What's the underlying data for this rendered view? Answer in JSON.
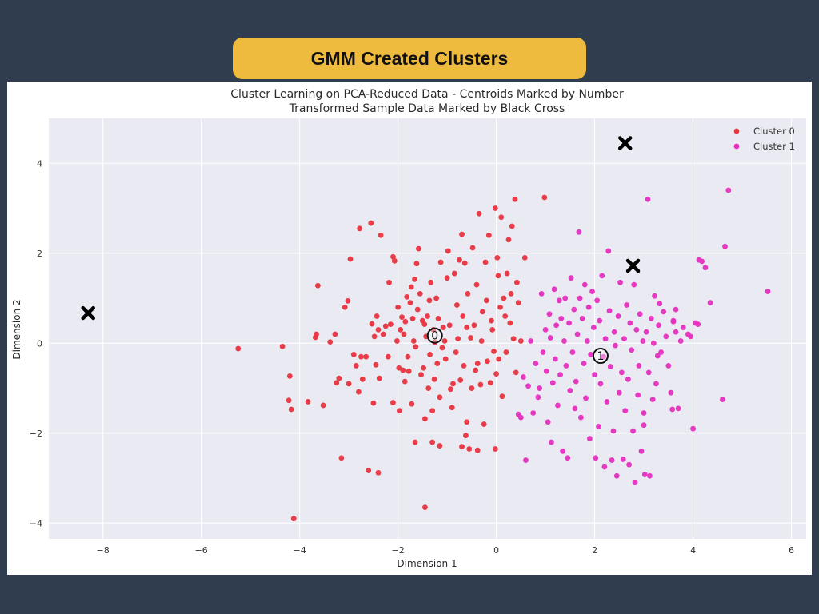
{
  "slide": {
    "header": "GMM Created Clusters",
    "background_color": "#2f3d4e",
    "header_color": "#efbb3e"
  },
  "chart_data": {
    "type": "scatter",
    "title": "Cluster Learning on PCA-Reduced Data - Centroids Marked by Number",
    "subtitle": "Transformed Sample Data Marked by Black Cross",
    "xlabel": "Dimension 1",
    "ylabel": "Dimension 2",
    "xlim": [
      -9.1,
      6.3
    ],
    "ylim": [
      -4.35,
      5.0
    ],
    "xticks": [
      -8,
      -6,
      -4,
      -2,
      0,
      2,
      4,
      6
    ],
    "yticks": [
      -4,
      -2,
      0,
      2,
      4
    ],
    "grid": true,
    "legend_position": "top-right",
    "series": [
      {
        "name": "Cluster 0",
        "color": "#e8343f",
        "points": [
          [
            -5.25,
            -0.12
          ],
          [
            -4.35,
            -0.07
          ],
          [
            -4.2,
            -0.73
          ],
          [
            -4.22,
            -1.27
          ],
          [
            -4.17,
            -1.47
          ],
          [
            -4.12,
            -3.9
          ],
          [
            -3.83,
            -1.3
          ],
          [
            -3.68,
            0.13
          ],
          [
            -3.66,
            0.2
          ],
          [
            -3.63,
            1.28
          ],
          [
            -3.52,
            -1.38
          ],
          [
            -3.38,
            0.03
          ],
          [
            -3.28,
            0.2
          ],
          [
            -3.25,
            -0.88
          ],
          [
            -3.2,
            -0.78
          ],
          [
            -3.15,
            -2.55
          ],
          [
            -3.08,
            0.8
          ],
          [
            -3.02,
            0.94
          ],
          [
            -3.0,
            -0.9
          ],
          [
            -2.97,
            1.87
          ],
          [
            -2.9,
            -0.25
          ],
          [
            -2.85,
            -0.5
          ],
          [
            -2.8,
            -1.08
          ],
          [
            -2.78,
            2.55
          ],
          [
            -2.75,
            -0.3
          ],
          [
            -2.72,
            -0.8
          ],
          [
            -2.65,
            -0.3
          ],
          [
            -2.6,
            -2.83
          ],
          [
            -2.55,
            2.67
          ],
          [
            -2.53,
            0.43
          ],
          [
            -2.5,
            -1.33
          ],
          [
            -2.48,
            0.15
          ],
          [
            -2.45,
            -0.48
          ],
          [
            -2.43,
            0.6
          ],
          [
            -2.4,
            0.3
          ],
          [
            -2.38,
            -0.78
          ],
          [
            -2.4,
            -2.88
          ],
          [
            -2.35,
            2.4
          ],
          [
            -2.3,
            0.2
          ],
          [
            -2.25,
            0.38
          ],
          [
            -2.2,
            -0.3
          ],
          [
            -2.18,
            1.35
          ],
          [
            -2.15,
            0.42
          ],
          [
            -2.1,
            -1.32
          ],
          [
            -2.1,
            1.92
          ],
          [
            -2.07,
            1.83
          ],
          [
            -2.02,
            0.05
          ],
          [
            -2.0,
            0.8
          ],
          [
            -1.98,
            -0.55
          ],
          [
            -1.97,
            -1.5
          ],
          [
            -1.95,
            0.3
          ],
          [
            -1.92,
            0.58
          ],
          [
            -1.9,
            -0.6
          ],
          [
            -1.88,
            0.2
          ],
          [
            -1.86,
            -0.85
          ],
          [
            -1.85,
            0.48
          ],
          [
            -1.82,
            1.03
          ],
          [
            -1.8,
            -0.3
          ],
          [
            -1.78,
            -0.62
          ],
          [
            -1.75,
            0.9
          ],
          [
            -1.73,
            1.25
          ],
          [
            -1.72,
            -1.35
          ],
          [
            -1.7,
            0.55
          ],
          [
            -1.68,
            0.05
          ],
          [
            -1.66,
            1.42
          ],
          [
            -1.64,
            -0.08
          ],
          [
            -1.62,
            1.77
          ],
          [
            -1.6,
            0.75
          ],
          [
            -1.58,
            2.1
          ],
          [
            -1.55,
            1.1
          ],
          [
            -1.53,
            -0.7
          ],
          [
            -1.5,
            0.5
          ],
          [
            -1.48,
            -0.55
          ],
          [
            -1.46,
            0.42
          ],
          [
            -1.45,
            -1.68
          ],
          [
            -1.43,
            0.15
          ],
          [
            -1.4,
            0.6
          ],
          [
            -1.38,
            -1.0
          ],
          [
            -1.36,
            0.95
          ],
          [
            -1.35,
            -0.25
          ],
          [
            -1.33,
            1.35
          ],
          [
            -1.3,
            -1.5
          ],
          [
            -1.28,
            0.3
          ],
          [
            -1.26,
            -0.8
          ],
          [
            -1.25,
            0.02
          ],
          [
            -1.22,
            1.0
          ],
          [
            -1.2,
            -0.45
          ],
          [
            -1.18,
            0.55
          ],
          [
            -1.15,
            -1.2
          ],
          [
            -1.13,
            1.8
          ],
          [
            -1.1,
            -0.1
          ],
          [
            -1.08,
            0.35
          ],
          [
            -1.05,
            0.05
          ],
          [
            -1.03,
            -0.35
          ],
          [
            -1.0,
            1.45
          ],
          [
            -0.98,
            2.05
          ],
          [
            -0.95,
            0.4
          ],
          [
            -0.93,
            -1.02
          ],
          [
            -0.9,
            -1.43
          ],
          [
            -0.88,
            -0.9
          ],
          [
            -0.85,
            1.55
          ],
          [
            -0.82,
            -0.2
          ],
          [
            -0.8,
            0.85
          ],
          [
            -0.78,
            0.1
          ],
          [
            -0.75,
            1.85
          ],
          [
            -0.73,
            -0.82
          ],
          [
            -0.7,
            2.42
          ],
          [
            -0.68,
            0.6
          ],
          [
            -0.66,
            -0.5
          ],
          [
            -0.64,
            1.78
          ],
          [
            -0.62,
            -2.05
          ],
          [
            -0.6,
            0.35
          ],
          [
            -0.58,
            1.1
          ],
          [
            -0.55,
            -2.35
          ],
          [
            -0.52,
            0.12
          ],
          [
            -0.5,
            -1.0
          ],
          [
            -0.48,
            2.12
          ],
          [
            -0.45,
            0.4
          ],
          [
            -0.42,
            -0.6
          ],
          [
            -0.4,
            1.3
          ],
          [
            -0.38,
            -0.45
          ],
          [
            -0.35,
            2.88
          ],
          [
            -0.32,
            -0.92
          ],
          [
            -0.3,
            0.05
          ],
          [
            -0.28,
            0.7
          ],
          [
            -0.25,
            -1.8
          ],
          [
            -0.22,
            1.8
          ],
          [
            -0.2,
            0.95
          ],
          [
            -0.18,
            -0.4
          ],
          [
            -0.15,
            2.4
          ],
          [
            -0.12,
            -0.88
          ],
          [
            -0.1,
            0.5
          ],
          [
            -0.08,
            0.3
          ],
          [
            -0.05,
            -0.18
          ],
          [
            -0.02,
            3.0
          ],
          [
            0.0,
            -0.68
          ],
          [
            0.02,
            1.9
          ],
          [
            0.04,
            1.5
          ],
          [
            0.05,
            -0.35
          ],
          [
            0.08,
            0.8
          ],
          [
            0.1,
            2.8
          ],
          [
            0.12,
            -1.18
          ],
          [
            0.15,
            1.0
          ],
          [
            0.18,
            0.6
          ],
          [
            0.2,
            -0.2
          ],
          [
            0.22,
            1.55
          ],
          [
            0.25,
            2.3
          ],
          [
            0.28,
            0.45
          ],
          [
            0.3,
            1.1
          ],
          [
            0.32,
            2.6
          ],
          [
            0.35,
            0.1
          ],
          [
            0.38,
            3.2
          ],
          [
            0.4,
            -0.65
          ],
          [
            0.42,
            1.35
          ],
          [
            0.45,
            0.9
          ],
          [
            0.5,
            0.05
          ],
          [
            0.58,
            1.9
          ],
          [
            0.98,
            3.24
          ],
          [
            -1.3,
            -2.2
          ],
          [
            -1.45,
            -3.65
          ],
          [
            -1.15,
            -2.28
          ],
          [
            -0.7,
            -2.3
          ],
          [
            -0.38,
            -2.38
          ],
          [
            -0.02,
            -2.35
          ],
          [
            -0.6,
            -1.75
          ],
          [
            -1.65,
            -2.2
          ]
        ]
      },
      {
        "name": "Cluster 1",
        "color": "#e62fbf",
        "points": [
          [
            0.45,
            -1.58
          ],
          [
            0.5,
            -1.65
          ],
          [
            0.55,
            -0.75
          ],
          [
            0.6,
            -2.6
          ],
          [
            0.65,
            -0.95
          ],
          [
            0.7,
            0.05
          ],
          [
            0.75,
            -1.55
          ],
          [
            0.8,
            -0.45
          ],
          [
            0.85,
            -1.2
          ],
          [
            0.88,
            -1.0
          ],
          [
            0.92,
            1.1
          ],
          [
            0.95,
            -0.2
          ],
          [
            1.0,
            0.3
          ],
          [
            1.02,
            -0.62
          ],
          [
            1.05,
            -1.75
          ],
          [
            1.08,
            0.65
          ],
          [
            1.1,
            0.12
          ],
          [
            1.12,
            -2.2
          ],
          [
            1.15,
            -0.88
          ],
          [
            1.18,
            1.2
          ],
          [
            1.2,
            -0.35
          ],
          [
            1.22,
            0.4
          ],
          [
            1.25,
            -1.38
          ],
          [
            1.28,
            0.95
          ],
          [
            1.3,
            -0.7
          ],
          [
            1.32,
            0.55
          ],
          [
            1.35,
            -2.4
          ],
          [
            1.38,
            0.05
          ],
          [
            1.4,
            1.0
          ],
          [
            1.42,
            -0.5
          ],
          [
            1.45,
            -2.55
          ],
          [
            1.48,
            0.45
          ],
          [
            1.5,
            -1.05
          ],
          [
            1.52,
            1.45
          ],
          [
            1.55,
            -0.2
          ],
          [
            1.58,
            0.75
          ],
          [
            1.6,
            -1.45
          ],
          [
            1.62,
            -0.85
          ],
          [
            1.65,
            0.2
          ],
          [
            1.68,
            2.47
          ],
          [
            1.7,
            1.0
          ],
          [
            1.72,
            -1.65
          ],
          [
            1.75,
            0.55
          ],
          [
            1.78,
            -0.45
          ],
          [
            1.8,
            1.3
          ],
          [
            1.82,
            -1.22
          ],
          [
            1.85,
            0.05
          ],
          [
            1.88,
            0.8
          ],
          [
            1.9,
            -2.12
          ],
          [
            1.92,
            -0.25
          ],
          [
            1.95,
            1.15
          ],
          [
            1.98,
            0.35
          ],
          [
            2.0,
            -0.7
          ],
          [
            2.02,
            -2.55
          ],
          [
            2.05,
            0.95
          ],
          [
            2.08,
            -1.85
          ],
          [
            2.1,
            0.5
          ],
          [
            2.12,
            -0.9
          ],
          [
            2.15,
            1.5
          ],
          [
            2.18,
            -0.3
          ],
          [
            2.2,
            -2.75
          ],
          [
            2.22,
            0.1
          ],
          [
            2.25,
            -1.3
          ],
          [
            2.28,
            2.05
          ],
          [
            2.3,
            0.72
          ],
          [
            2.32,
            -0.52
          ],
          [
            2.35,
            -2.6
          ],
          [
            2.38,
            -1.95
          ],
          [
            2.4,
            0.25
          ],
          [
            2.42,
            -0.05
          ],
          [
            2.45,
            -2.95
          ],
          [
            2.48,
            0.6
          ],
          [
            2.5,
            -1.1
          ],
          [
            2.52,
            1.35
          ],
          [
            2.55,
            -0.65
          ],
          [
            2.58,
            -2.58
          ],
          [
            2.6,
            0.1
          ],
          [
            2.62,
            -1.5
          ],
          [
            2.65,
            0.85
          ],
          [
            2.68,
            -0.8
          ],
          [
            2.7,
            -2.7
          ],
          [
            2.72,
            0.45
          ],
          [
            2.75,
            -0.15
          ],
          [
            2.78,
            -1.95
          ],
          [
            2.8,
            1.3
          ],
          [
            2.82,
            -3.1
          ],
          [
            2.85,
            0.3
          ],
          [
            2.88,
            -1.15
          ],
          [
            2.9,
            -0.5
          ],
          [
            2.92,
            0.65
          ],
          [
            2.95,
            -2.4
          ],
          [
            2.98,
            0.05
          ],
          [
            3.0,
            -1.55
          ],
          [
            3.02,
            -2.92
          ],
          [
            3.05,
            0.25
          ],
          [
            3.08,
            3.2
          ],
          [
            3.1,
            -0.65
          ],
          [
            3.12,
            -2.95
          ],
          [
            3.15,
            0.55
          ],
          [
            3.18,
            -1.25
          ],
          [
            3.2,
            0.0
          ],
          [
            3.22,
            1.05
          ],
          [
            3.25,
            -0.9
          ],
          [
            3.3,
            0.4
          ],
          [
            3.35,
            -0.2
          ],
          [
            3.4,
            0.7
          ],
          [
            3.45,
            0.15
          ],
          [
            3.5,
            -0.5
          ],
          [
            3.55,
            -1.1
          ],
          [
            3.6,
            0.5
          ],
          [
            3.65,
            0.25
          ],
          [
            3.7,
            -1.45
          ],
          [
            3.8,
            0.35
          ],
          [
            3.9,
            0.2
          ],
          [
            3.95,
            0.15
          ],
          [
            4.0,
            -1.9
          ],
          [
            4.05,
            0.45
          ],
          [
            4.12,
            1.85
          ],
          [
            4.18,
            1.82
          ],
          [
            4.25,
            1.68
          ],
          [
            4.35,
            0.9
          ],
          [
            4.6,
            -1.25
          ],
          [
            4.65,
            2.15
          ],
          [
            4.72,
            3.4
          ],
          [
            5.52,
            1.15
          ],
          [
            3.6,
            0.48
          ],
          [
            3.75,
            0.05
          ],
          [
            3.32,
            0.88
          ],
          [
            3.58,
            -1.47
          ],
          [
            3.65,
            0.75
          ],
          [
            4.1,
            0.42
          ],
          [
            3.28,
            -0.28
          ],
          [
            3.0,
            -1.82
          ]
        ]
      }
    ],
    "centroids": [
      {
        "label": "0",
        "x": -1.25,
        "y": 0.17
      },
      {
        "label": "1",
        "x": 2.12,
        "y": -0.28
      }
    ],
    "samples": [
      {
        "x": -8.3,
        "y": 0.67
      },
      {
        "x": 2.62,
        "y": 4.45
      },
      {
        "x": 2.78,
        "y": 1.72
      }
    ]
  }
}
